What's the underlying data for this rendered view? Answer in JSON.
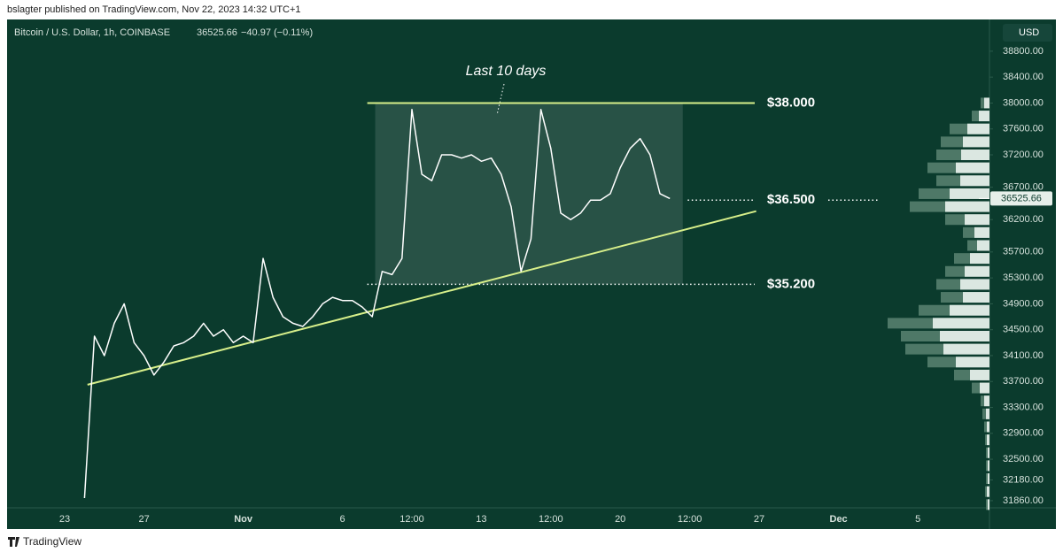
{
  "header": {
    "publisher": "bslagter published on TradingView.com, Nov 22, 2023 14:32 UTC+1"
  },
  "footer": {
    "brand": "TradingView"
  },
  "chart_data": {
    "type": "line",
    "symbol": "Bitcoin / U.S. Dollar, 1h, COINBASE",
    "last_price": 36525.66,
    "change_text": "−40.97 (−0.11%)",
    "currency": "USD",
    "annotation": "Last 10 days",
    "categories": [
      null,
      null,
      null,
      null,
      null,
      "23",
      null,
      null,
      null,
      null,
      null,
      null,
      null,
      "27",
      null,
      null,
      null,
      null,
      null,
      null,
      null,
      null,
      null,
      "Nov",
      null,
      null,
      null,
      null,
      null,
      null,
      null,
      null,
      null,
      "6",
      null,
      null,
      null,
      null,
      null,
      null,
      "12:00",
      null,
      null,
      null,
      null,
      null,
      null,
      "13",
      null,
      null,
      null,
      null,
      null,
      null,
      "12:00",
      null,
      null,
      null,
      null,
      null,
      null,
      "20",
      null,
      null,
      null,
      null,
      null,
      null,
      "12:00",
      null,
      null,
      null,
      null,
      null,
      null,
      "27",
      null,
      null,
      null,
      null,
      null,
      null,
      null,
      "Dec",
      null,
      null,
      null,
      null,
      null,
      null,
      null,
      "5",
      null,
      null,
      null,
      null,
      null,
      null
    ],
    "series": [
      {
        "color": "#ffffff",
        "values": [
          null,
          null,
          null,
          null,
          null,
          null,
          null,
          31900,
          34400,
          34100,
          34600,
          34900,
          34300,
          34100,
          33800,
          34000,
          34250,
          34300,
          34400,
          34600,
          34400,
          34500,
          34300,
          34400,
          34300,
          35600,
          35000,
          34700,
          34600,
          34550,
          34700,
          34900,
          35000,
          34950,
          34950,
          34850,
          34700,
          35400,
          35350,
          35600,
          37900,
          36900,
          36800,
          37200,
          37200,
          37150,
          37200,
          37100,
          37150,
          36900,
          36400,
          35400,
          35900,
          37900,
          37300,
          36300,
          36200,
          36300,
          36500,
          36500,
          36600,
          37000,
          37300,
          37450,
          37200,
          36600,
          36525,
          null,
          null,
          null,
          null,
          null,
          null,
          null,
          null,
          null,
          null,
          null,
          null,
          null,
          null,
          null,
          null,
          null,
          null,
          null,
          null,
          null,
          null,
          null,
          null,
          null,
          null,
          null,
          null,
          null,
          null,
          null
        ]
      }
    ],
    "trendline": {
      "color": "#d7ef8a",
      "values": [
        33650,
        36330
      ]
    },
    "levels": [
      {
        "value": 38000,
        "label": "$38.000",
        "style": "solid"
      },
      {
        "value": 36500,
        "label": "$36.500",
        "style": "dotted"
      },
      {
        "value": 35200,
        "label": "$35.200",
        "style": "dotted"
      }
    ],
    "volume_profile": {
      "prices": [
        38000,
        37800,
        37600,
        37400,
        37200,
        37000,
        36800,
        36600,
        36400,
        36200,
        36000,
        35800,
        35600,
        35400,
        35200,
        35000,
        34800,
        34600,
        34400,
        34200,
        34000,
        33800,
        33600,
        33400,
        33200,
        33000,
        32800,
        32600,
        32400,
        32200,
        32000,
        31800
      ],
      "light_values": [
        6,
        12,
        25,
        30,
        32,
        38,
        33,
        45,
        50,
        28,
        17,
        14,
        22,
        28,
        33,
        30,
        45,
        64,
        56,
        52,
        38,
        22,
        11,
        6,
        4,
        3,
        3,
        2,
        2,
        2,
        3,
        2
      ],
      "dark_values": [
        10,
        20,
        45,
        55,
        60,
        70,
        60,
        80,
        90,
        50,
        30,
        25,
        40,
        50,
        60,
        55,
        80,
        115,
        100,
        95,
        70,
        40,
        20,
        10,
        8,
        6,
        5,
        4,
        4,
        4,
        5,
        4
      ]
    },
    "ylim": [
      31750,
      39290
    ],
    "yticks": [
      {
        "value": 38800,
        "label": "38800.00"
      },
      {
        "value": 38400,
        "label": "38400.00"
      },
      {
        "value": 38000,
        "label": "38000.00"
      },
      {
        "value": 37600,
        "label": "37600.00"
      },
      {
        "value": 37200,
        "label": "37200.00"
      },
      {
        "value": 36700,
        "label": "36700.00"
      },
      {
        "value": 36200,
        "label": "36200.00"
      },
      {
        "value": 35700,
        "label": "35700.00"
      },
      {
        "value": 35300,
        "label": "35300.00"
      },
      {
        "value": 34900,
        "label": "34900.00"
      },
      {
        "value": 34500,
        "label": "34500.00"
      },
      {
        "value": 34100,
        "label": "34100.00"
      },
      {
        "value": 33700,
        "label": "33700.00"
      },
      {
        "value": 33300,
        "label": "33300.00"
      },
      {
        "value": 32900,
        "label": "32900.00"
      },
      {
        "value": 32500,
        "label": "32500.00"
      },
      {
        "value": 32180,
        "label": "32180.00"
      },
      {
        "value": 31860,
        "label": "31860.00"
      }
    ],
    "grid": false
  }
}
